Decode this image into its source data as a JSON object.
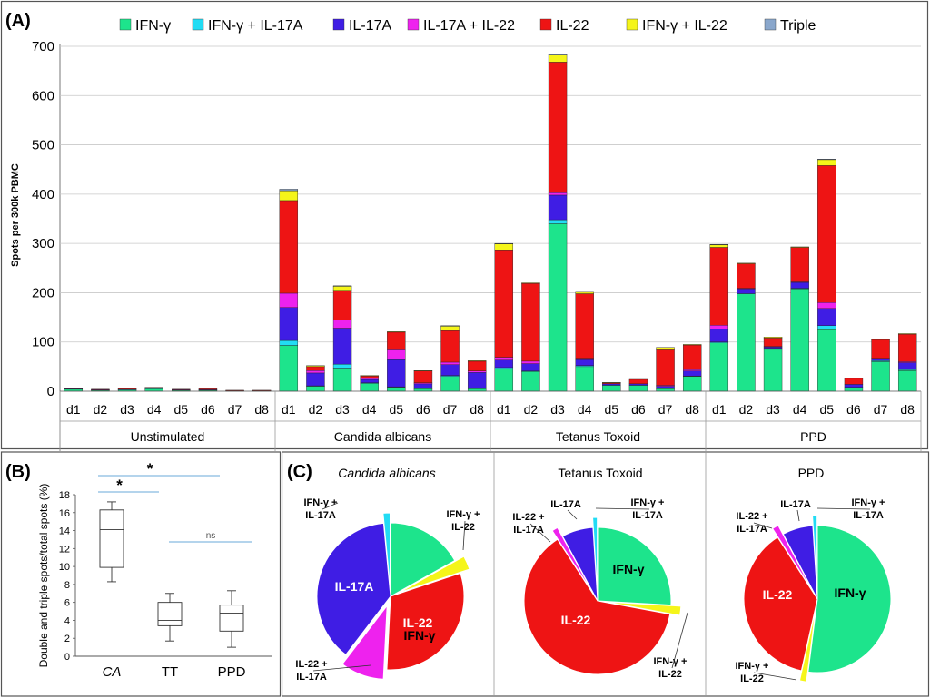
{
  "panels": {
    "A": {
      "label": "(A)"
    },
    "B": {
      "label": "(B)"
    },
    "C": {
      "label": "(C)"
    }
  },
  "colors": {
    "IFN-γ": "#1de48c",
    "IFN-γ + IL-17A": "#22dcf4",
    "IL-17A": "#3f1de4",
    "IL-17A + IL-22": "#ee22ee",
    "IL-22": "#ee1414",
    "IFN-γ + IL-22": "#f5f51a",
    "Triple": "#8aa7cc"
  },
  "chart_data": [
    {
      "type": "bar",
      "stacked": true,
      "title": "",
      "xlabel": "",
      "ylabel": "Spots per 300k PBMC",
      "ylim": [
        0,
        700
      ],
      "yticks": [
        0,
        100,
        200,
        300,
        400,
        500,
        600,
        700
      ],
      "legend": {
        "position": "top",
        "entries": [
          "IFN-γ",
          "IFN-γ + IL-17A",
          "IL-17A",
          "IL-17A + IL-22",
          "IL-22",
          "IFN-γ + IL-22",
          "Triple"
        ]
      },
      "groups": [
        "Unstimulated",
        "Candida albicans",
        "Tetanus Toxoid",
        "PPD"
      ],
      "donors": [
        "d1",
        "d2",
        "d3",
        "d4",
        "d5",
        "d6",
        "d7",
        "d8"
      ],
      "categories": [
        "d1",
        "d2",
        "d3",
        "d4",
        "d5",
        "d6",
        "d7",
        "d8",
        "d1",
        "d2",
        "d3",
        "d4",
        "d5",
        "d6",
        "d7",
        "d8",
        "d1",
        "d2",
        "d3",
        "d4",
        "d5",
        "d6",
        "d7",
        "d8",
        "d1",
        "d2",
        "d3",
        "d4",
        "d5",
        "d6",
        "d7",
        "d8"
      ],
      "series": [
        {
          "name": "IFN-γ",
          "values": [
            4,
            2,
            3,
            5,
            2,
            2,
            1,
            1,
            93,
            10,
            47,
            16,
            8,
            5,
            30,
            5,
            45,
            40,
            340,
            50,
            12,
            12,
            5,
            30,
            98,
            198,
            85,
            208,
            125,
            8,
            60,
            42
          ]
        },
        {
          "name": "IFN-γ + IL-17A",
          "values": [
            0,
            0,
            0,
            0,
            0,
            0,
            0,
            0,
            10,
            1,
            8,
            1,
            1,
            0,
            2,
            0,
            3,
            1,
            8,
            2,
            0,
            0,
            0,
            1,
            2,
            0,
            2,
            1,
            8,
            0,
            2,
            2
          ]
        },
        {
          "name": "IL-17A",
          "values": [
            1,
            1,
            1,
            1,
            1,
            1,
            0,
            0,
            67,
            26,
            73,
            7,
            55,
            10,
            22,
            33,
            15,
            15,
            50,
            12,
            3,
            3,
            5,
            10,
            26,
            10,
            3,
            12,
            35,
            6,
            4,
            14
          ]
        },
        {
          "name": "IL-17A + IL-22",
          "values": [
            0,
            0,
            0,
            0,
            0,
            0,
            0,
            0,
            29,
            5,
            17,
            3,
            20,
            2,
            5,
            3,
            6,
            5,
            5,
            3,
            0,
            0,
            2,
            3,
            8,
            1,
            1,
            1,
            12,
            0,
            1,
            2
          ]
        },
        {
          "name": "IL-22",
          "values": [
            1,
            1,
            2,
            2,
            1,
            2,
            1,
            1,
            188,
            8,
            58,
            4,
            36,
            24,
            64,
            20,
            218,
            158,
            265,
            131,
            2,
            9,
            72,
            50,
            158,
            50,
            17,
            70,
            278,
            12,
            38,
            56
          ]
        },
        {
          "name": "IFN-γ + IL-22",
          "values": [
            0,
            0,
            0,
            0,
            0,
            0,
            0,
            0,
            20,
            2,
            10,
            1,
            1,
            1,
            9,
            1,
            12,
            1,
            14,
            3,
            1,
            0,
            5,
            1,
            5,
            1,
            2,
            1,
            12,
            0,
            1,
            1
          ]
        },
        {
          "name": "Triple",
          "values": [
            0,
            0,
            0,
            0,
            0,
            0,
            0,
            0,
            3,
            0,
            1,
            0,
            0,
            0,
            1,
            0,
            1,
            0,
            2,
            0,
            0,
            0,
            0,
            0,
            1,
            0,
            0,
            0,
            1,
            0,
            0,
            0
          ]
        }
      ]
    },
    {
      "type": "box",
      "title": "",
      "xlabel": "",
      "ylabel": "Double and triple spots/total spots (%)",
      "ylim": [
        0,
        18
      ],
      "yticks": [
        0,
        2,
        4,
        6,
        8,
        10,
        12,
        14,
        16,
        18
      ],
      "categories": [
        "CA",
        "TT",
        "PPD"
      ],
      "boxes": [
        {
          "name": "CA",
          "min": 8.3,
          "q1": 9.9,
          "median": 14.1,
          "q3": 16.3,
          "max": 17.2
        },
        {
          "name": "TT",
          "min": 1.7,
          "q1": 3.4,
          "median": 4.0,
          "q3": 6.0,
          "max": 7.0
        },
        {
          "name": "PPD",
          "min": 1.0,
          "q1": 2.8,
          "median": 4.8,
          "q3": 5.7,
          "max": 7.3
        }
      ],
      "significance": [
        {
          "pair": [
            "CA",
            "TT"
          ],
          "label": "*"
        },
        {
          "pair": [
            "CA",
            "PPD"
          ],
          "label": "*"
        },
        {
          "pair": [
            "TT",
            "PPD"
          ],
          "label": "ns"
        }
      ]
    },
    {
      "type": "pie",
      "title": "Candida albicans",
      "slices": [
        {
          "label": "IFN-γ",
          "value": 16.9
        },
        {
          "label": "IFN-γ + IL-22",
          "value": 3.0
        },
        {
          "label": "IL-22",
          "value": 30.9
        },
        {
          "label": "IL-22 + IL-17A",
          "value": 9.6
        },
        {
          "label": "IL-17A",
          "value": 38.1
        },
        {
          "label": "IFN-γ + IL-17A",
          "value": 1.5
        }
      ]
    },
    {
      "type": "pie",
      "title": "Tetanus Toxoid",
      "slices": [
        {
          "label": "IFN-γ",
          "value": 25.9
        },
        {
          "label": "IFN-γ + IL-22",
          "value": 2.0
        },
        {
          "label": "IL-22",
          "value": 62.9
        },
        {
          "label": "IL-22 + IL-17A",
          "value": 1.3
        },
        {
          "label": "IL-17A",
          "value": 6.9
        },
        {
          "label": "IFN-γ + IL-17A",
          "value": 1.0
        }
      ]
    },
    {
      "type": "pie",
      "title": "PPD",
      "slices": [
        {
          "label": "IFN-γ",
          "value": 52.0
        },
        {
          "label": "IFN-γ + IL-22",
          "value": 1.5
        },
        {
          "label": "IL-22",
          "value": 37.4
        },
        {
          "label": "IL-22 + IL-17A",
          "value": 1.4
        },
        {
          "label": "IL-17A",
          "value": 6.7
        },
        {
          "label": "IFN-γ + IL-17A",
          "value": 1.0
        }
      ]
    }
  ],
  "pie_annotations": {
    "IFN-γ": "IFN-γ",
    "IL-22": "IL-22",
    "IL-17A": "IL-17A",
    "IFN-γ + IL-17A": [
      "IFN-γ +",
      "IL-17A"
    ],
    "IFN-γ + IL-22": [
      "IFN-γ +",
      "IL-22"
    ],
    "IL-22 + IL-17A": [
      "IL-22 +",
      "IL-17A"
    ]
  }
}
